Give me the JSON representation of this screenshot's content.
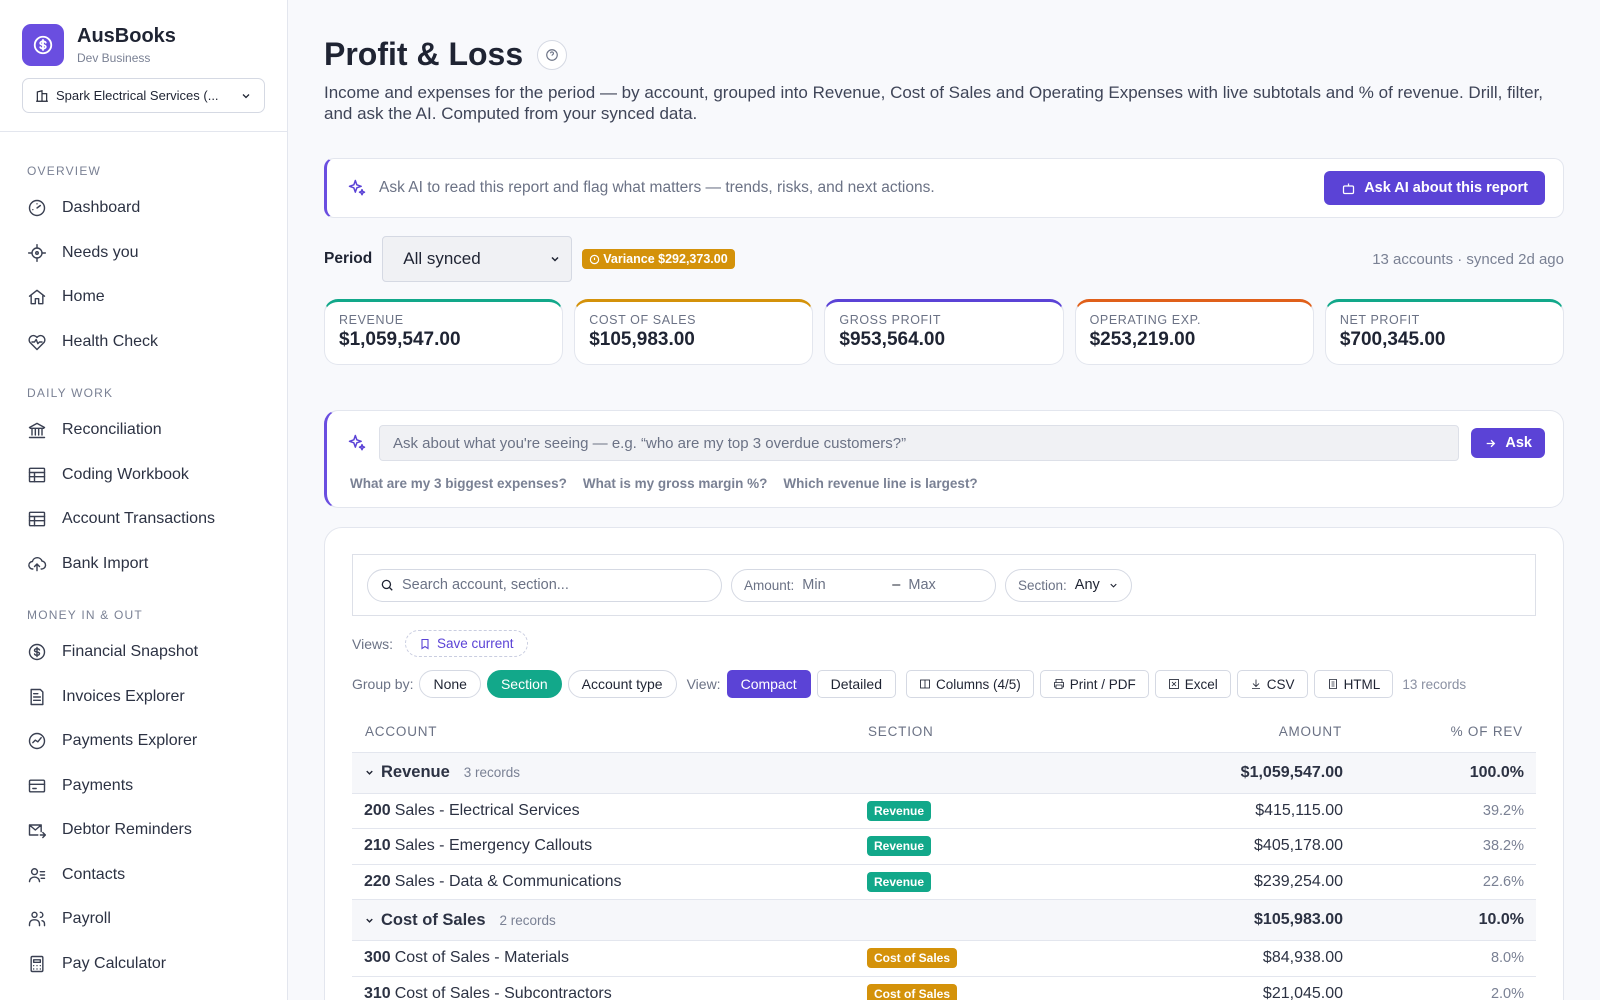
{
  "brand": {
    "name": "AusBooks",
    "sub": "Dev Business",
    "business": "Spark Electrical Services (..."
  },
  "nav": {
    "sections": [
      {
        "title": "OVERVIEW",
        "items": [
          "Dashboard",
          "Needs you",
          "Home",
          "Health Check"
        ]
      },
      {
        "title": "DAILY WORK",
        "items": [
          "Reconciliation",
          "Coding Workbook",
          "Account Transactions",
          "Bank Import"
        ]
      },
      {
        "title": "MONEY IN & OUT",
        "items": [
          "Financial Snapshot",
          "Invoices Explorer",
          "Payments Explorer",
          "Payments",
          "Debtor Reminders",
          "Contacts",
          "Payroll",
          "Pay Calculator"
        ]
      }
    ]
  },
  "page": {
    "title": "Profit & Loss",
    "description": "Income and expenses for the period — by account, grouped into Revenue, Cost of Sales and Operating Expenses with live subtotals and % of revenue. Drill, filter, and ask the AI. Computed from your synced data."
  },
  "ai_bar": {
    "text": "Ask AI to read this report and flag what matters — trends, risks, and next actions.",
    "button": "Ask AI about this report"
  },
  "period": {
    "label": "Period",
    "value": "All synced",
    "variance": "Variance $292,373.00",
    "meta": "13 accounts · synced 2d ago"
  },
  "kpis": [
    {
      "label": "REVENUE",
      "value": "$1,059,547.00",
      "color": "#12a88a"
    },
    {
      "label": "COST OF SALES",
      "value": "$105,983.00",
      "color": "#d4920a"
    },
    {
      "label": "GROSS PROFIT",
      "value": "$953,564.00",
      "color": "#5b43d6"
    },
    {
      "label": "OPERATING EXP.",
      "value": "$253,219.00",
      "color": "#e0601a"
    },
    {
      "label": "NET PROFIT",
      "value": "$700,345.00",
      "color": "#12a88a"
    }
  ],
  "ask": {
    "placeholder": "Ask about what you're seeing — e.g. “who are my top 3 overdue customers?”",
    "button": "Ask",
    "suggestions": [
      "What are my 3 biggest expenses?",
      "What is my gross margin %?",
      "Which revenue line is largest?"
    ]
  },
  "filters": {
    "search_placeholder": "Search account, section...",
    "amount_label": "Amount:",
    "min_placeholder": "Min",
    "dash": "–",
    "max_placeholder": "Max",
    "section_label": "Section:",
    "section_value": "Any"
  },
  "views": {
    "label": "Views:",
    "save": "Save current"
  },
  "toolbar": {
    "group_label": "Group by:",
    "group_options": [
      "None",
      "Section",
      "Account type"
    ],
    "view_label": "View:",
    "view_options": [
      "Compact",
      "Detailed"
    ],
    "columns": "Columns (4/5)",
    "print": "Print / PDF",
    "excel": "Excel",
    "csv": "CSV",
    "html": "HTML",
    "records": "13 records"
  },
  "table": {
    "headers": [
      "ACCOUNT",
      "SECTION",
      "AMOUNT",
      "% OF REV"
    ],
    "groups": [
      {
        "name": "Revenue",
        "count": "3 records",
        "amount": "$1,059,547.00",
        "pct": "100.0%",
        "rows": [
          {
            "code": "200",
            "name": "Sales - Electrical Services",
            "section": "Revenue",
            "amount": "$415,115.00",
            "pct": "39.2%"
          },
          {
            "code": "210",
            "name": "Sales - Emergency Callouts",
            "section": "Revenue",
            "amount": "$405,178.00",
            "pct": "38.2%"
          },
          {
            "code": "220",
            "name": "Sales - Data & Communications",
            "section": "Revenue",
            "amount": "$239,254.00",
            "pct": "22.6%"
          }
        ]
      },
      {
        "name": "Cost of Sales",
        "count": "2 records",
        "amount": "$105,983.00",
        "pct": "10.0%",
        "rows": [
          {
            "code": "300",
            "name": "Cost of Sales - Materials",
            "section": "Cost of Sales",
            "amount": "$84,938.00",
            "pct": "8.0%"
          },
          {
            "code": "310",
            "name": "Cost of Sales - Subcontractors",
            "section": "Cost of Sales",
            "amount": "$21,045.00",
            "pct": "2.0%"
          }
        ]
      }
    ]
  },
  "icons": {
    "nav": [
      "gauge-icon",
      "crosshair-icon",
      "home-icon",
      "heart-pulse-icon",
      "bank-icon",
      "table-icon",
      "table-icon",
      "cloud-upload-icon",
      "dollar-circle-icon",
      "invoice-icon",
      "chart-circle-icon",
      "card-icon",
      "mail-send-icon",
      "contacts-icon",
      "users-icon",
      "calculator-icon"
    ]
  }
}
